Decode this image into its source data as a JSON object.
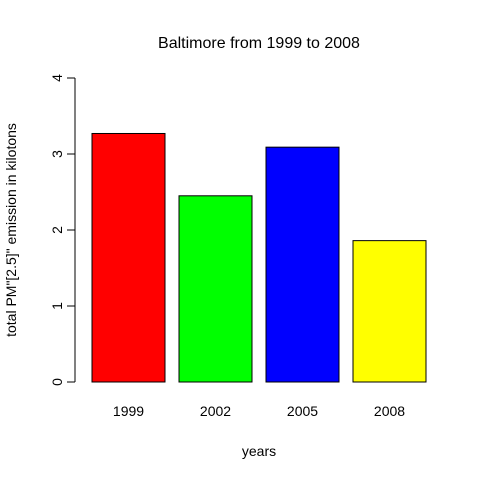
{
  "chart_data": {
    "type": "bar",
    "title": "Baltimore from 1999 to 2008",
    "xlabel": "years",
    "ylabel": "total PM\"[2.5]\" emission in kilotons",
    "categories": [
      "1999",
      "2002",
      "2005",
      "2008"
    ],
    "values": [
      3.27,
      2.45,
      3.09,
      1.86
    ],
    "colors": [
      "#ff0000",
      "#00ff00",
      "#0000ff",
      "#ffff00"
    ],
    "ylim": [
      0,
      4
    ],
    "yticks": [
      "0",
      "1",
      "2",
      "3",
      "4"
    ],
    "grid": false,
    "legend": "none"
  }
}
